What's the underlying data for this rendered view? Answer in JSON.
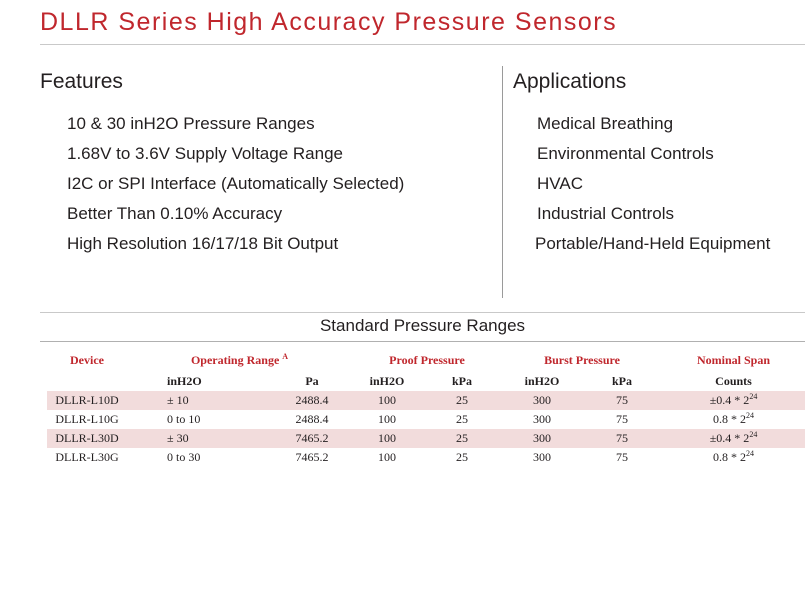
{
  "header": {
    "title": "DLLR Series High Accuracy Pressure Sensors"
  },
  "features": {
    "heading": "Features",
    "items": [
      "10 & 30 inH2O Pressure Ranges",
      "1.68V to 3.6V Supply Voltage Range",
      "I2C or SPI Interface (Automatically Selected)",
      "Better Than 0.10% Accuracy",
      "High Resolution 16/17/18 Bit Output"
    ]
  },
  "applications": {
    "heading": "Applications",
    "items": [
      "Medical Breathing",
      "Environmental Controls",
      "HVAC",
      "Industrial Controls",
      "Portable/Hand-Held Equipment"
    ]
  },
  "table": {
    "title": "Standard Pressure Ranges",
    "headers": {
      "device": "Device",
      "operating_range": "Operating Range",
      "operating_range_note": "A",
      "proof_pressure": "Proof Pressure",
      "burst_pressure": "Burst Pressure",
      "nominal_span": "Nominal Span"
    },
    "subheaders": {
      "op_inh2o": "inH2O",
      "op_pa": "Pa",
      "proof_inh2o": "inH2O",
      "proof_kpa": "kPa",
      "burst_inh2o": "inH2O",
      "burst_kpa": "kPa",
      "span_counts": "Counts"
    },
    "rows": [
      {
        "device": "DLLR-L10D",
        "op_inh2o": "± 10",
        "op_pa": "2488.4",
        "proof_inh2o": "100",
        "proof_kpa": "25",
        "burst_inh2o": "300",
        "burst_kpa": "75",
        "span_base": "±0.4 * 2",
        "span_exp": "24"
      },
      {
        "device": "DLLR-L10G",
        "op_inh2o": "0 to 10",
        "op_pa": "2488.4",
        "proof_inh2o": "100",
        "proof_kpa": "25",
        "burst_inh2o": "300",
        "burst_kpa": "75",
        "span_base": "0.8 * 2",
        "span_exp": "24"
      },
      {
        "device": "DLLR-L30D",
        "op_inh2o": "± 30",
        "op_pa": "7465.2",
        "proof_inh2o": "100",
        "proof_kpa": "25",
        "burst_inh2o": "300",
        "burst_kpa": "75",
        "span_base": "±0.4 * 2",
        "span_exp": "24"
      },
      {
        "device": "DLLR-L30G",
        "op_inh2o": "0 to 30",
        "op_pa": "7465.2",
        "proof_inh2o": "100",
        "proof_kpa": "25",
        "burst_inh2o": "300",
        "burst_kpa": "75",
        "span_base": "0.8 * 2",
        "span_exp": "24"
      }
    ]
  },
  "colors": {
    "accent": "#c0272d",
    "row_shade": "#f2dcdc",
    "text": "#231f20"
  }
}
